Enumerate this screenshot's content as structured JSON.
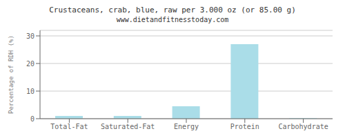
{
  "chart_data": {
    "type": "bar",
    "title": "Crustaceans, crab, blue, raw per 3.000 oz (or 85.00 g)",
    "subtitle": "www.dietandfitnesstoday.com",
    "categories": [
      "Total-Fat",
      "Saturated-Fat",
      "Energy",
      "Protein",
      "Carbohydrate"
    ],
    "values": [
      1.0,
      1.0,
      4.5,
      27.0,
      0.2
    ],
    "color": "#aadde8",
    "ylabel": "Percentage of RDH (%)",
    "ylim": [
      0,
      32
    ],
    "yticks": [
      0,
      10,
      20,
      30
    ],
    "grid": true
  }
}
